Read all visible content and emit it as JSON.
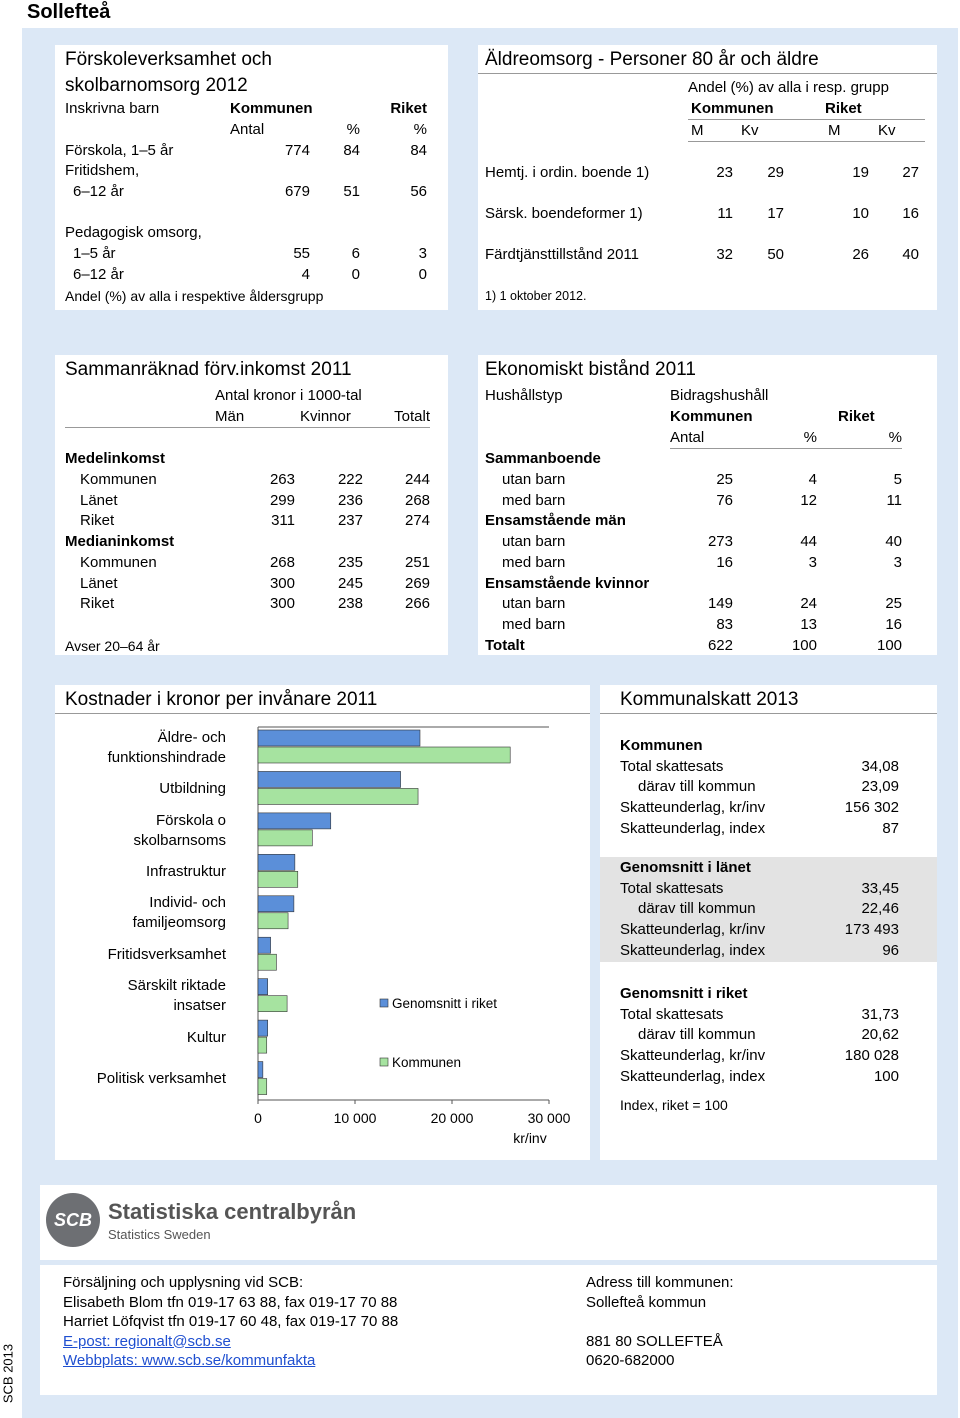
{
  "header": {
    "title": "Sollefteå"
  },
  "preschool": {
    "title": "Förskoleverksamhet och skolbarnomsorg 2012",
    "row_header": "Inskrivna barn",
    "col_groups": [
      "Kommunen",
      "Riket"
    ],
    "col_heads": [
      "Antal",
      "%",
      "%"
    ],
    "rows": [
      {
        "label": "Förskola, 1–5 år",
        "values": [
          774,
          84,
          84
        ]
      },
      {
        "label": "Fritidshem,",
        "rows": [
          {
            "label": "6–12 år",
            "values": [
              679,
              51,
              56
            ]
          }
        ]
      },
      {
        "label": "Pedagogisk omsorg,",
        "rows": [
          {
            "label": "1–5 år",
            "values": [
              55,
              6,
              3
            ]
          },
          {
            "label": "6–12 år",
            "values": [
              4,
              0,
              0
            ]
          }
        ]
      }
    ],
    "note": "Andel (%) av alla i respektive åldersgrupp"
  },
  "elderly": {
    "title": "Äldreomsorg - Personer 80 år och äldre",
    "subtitle": "Andel (%) av alla i resp. grupp",
    "col_groups": [
      "Kommunen",
      "Riket"
    ],
    "col_heads": [
      "M",
      "Kv",
      "M",
      "Kv"
    ],
    "rows": [
      {
        "label": "Hemtj. i ordin. boende 1)",
        "values": [
          23,
          29,
          19,
          27
        ]
      },
      {
        "label": "Särsk. boendeformer 1)",
        "values": [
          11,
          17,
          10,
          16
        ]
      },
      {
        "label": "Färdtjänsttillstånd 2011",
        "values": [
          32,
          50,
          26,
          40
        ]
      }
    ],
    "note": "1) 1 oktober 2012."
  },
  "income": {
    "title": "Sammanräknad förv.inkomst 2011",
    "unit": "Antal kronor i 1000-tal",
    "col_heads": [
      "Män",
      "Kvinnor",
      "Totalt"
    ],
    "rows": [
      {
        "label": "Medelinkomst",
        "rows": [
          {
            "label": "Kommunen",
            "values": [
              263,
              222,
              244
            ]
          },
          {
            "label": "Länet",
            "values": [
              299,
              236,
              268
            ]
          },
          {
            "label": "Riket",
            "values": [
              311,
              237,
              274
            ]
          }
        ]
      },
      {
        "label": "Medianinkomst",
        "rows": [
          {
            "label": "Kommunen",
            "values": [
              268,
              235,
              251
            ]
          },
          {
            "label": "Länet",
            "values": [
              300,
              245,
              269
            ]
          },
          {
            "label": "Riket",
            "values": [
              300,
              238,
              266
            ]
          }
        ]
      }
    ],
    "note": "Avser 20–64 år"
  },
  "aid": {
    "title": "Ekonomiskt bistånd 2011",
    "row_header": "Hushållstyp",
    "col_super": "Bidragshushåll",
    "col_groups": [
      "Kommunen",
      "Riket"
    ],
    "col_heads": [
      "Antal",
      "%",
      "%"
    ],
    "rows": [
      {
        "label": "Sammanboende",
        "rows": [
          {
            "label": "utan barn",
            "values": [
              25,
              4,
              5
            ]
          },
          {
            "label": "med barn",
            "values": [
              76,
              12,
              11
            ]
          }
        ]
      },
      {
        "label": "Ensamstående män",
        "rows": [
          {
            "label": "utan barn",
            "values": [
              273,
              44,
              40
            ]
          },
          {
            "label": "med barn",
            "values": [
              16,
              3,
              3
            ]
          }
        ]
      },
      {
        "label": "Ensamstående kvinnor",
        "rows": [
          {
            "label": "utan barn",
            "values": [
              149,
              24,
              25
            ]
          },
          {
            "label": "med barn",
            "values": [
              83,
              13,
              16
            ]
          }
        ]
      },
      {
        "label": "Totalt",
        "values": [
          622,
          100,
          100
        ]
      }
    ]
  },
  "chart_data": {
    "type": "bar",
    "orientation": "horizontal",
    "title": "Kostnader i kronor per invånare 2011",
    "categories": [
      "Äldre- och funktionshindrade",
      "Utbildning",
      "Förskola o skolbarnsoms",
      "Infrastruktur",
      "Individ- och familjeomsorg",
      "Fritidsverksamhet",
      "Särskilt riktade insatser",
      "Kultur",
      "Politisk verksamhet"
    ],
    "series": [
      {
        "name": "Genomsnitt i riket",
        "color": "#5b8fd9",
        "values": [
          16700,
          14700,
          7500,
          3800,
          3700,
          1300,
          1000,
          1000,
          500
        ]
      },
      {
        "name": "Kommunen",
        "color": "#a6e3a0",
        "values": [
          26000,
          16500,
          5600,
          4100,
          3100,
          1900,
          3000,
          900,
          900
        ]
      }
    ],
    "xlim": [
      0,
      30000
    ],
    "xticks": [
      0,
      {
        "value": 10000,
        "label": "10 000"
      },
      {
        "value": 20000,
        "label": "20 000"
      },
      {
        "value": 30000,
        "label": "30 000"
      }
    ],
    "x_label": "kr/inv",
    "grid": false
  },
  "tax": {
    "title": "Kommunalskatt 2013",
    "sections": [
      {
        "name": "Kommunen",
        "rows": [
          {
            "label": "Total skattesats",
            "value": "34,08",
            "rows": [
              {
                "label": "därav till kommun",
                "value": "23,09"
              }
            ]
          },
          {
            "label": "Skatteunderlag, kr/inv",
            "value": "156 302"
          },
          {
            "label": "Skatteunderlag, index",
            "value": "87"
          }
        ]
      },
      {
        "name": "Genomsnitt i länet",
        "rows": [
          {
            "label": "Total skattesats",
            "value": "33,45",
            "rows": [
              {
                "label": "därav till kommun",
                "value": "22,46"
              }
            ]
          },
          {
            "label": "Skatteunderlag, kr/inv",
            "value": "173 493"
          },
          {
            "label": "Skatteunderlag, index",
            "value": "96"
          }
        ]
      },
      {
        "name": "Genomsnitt i riket",
        "rows": [
          {
            "label": "Total skattesats",
            "value": "31,73",
            "rows": [
              {
                "label": "därav till kommun",
                "value": "20,62"
              }
            ]
          },
          {
            "label": "Skatteunderlag, kr/inv",
            "value": "180 028"
          },
          {
            "label": "Skatteunderlag, index",
            "value": "100"
          }
        ]
      }
    ],
    "note": "Index, riket = 100"
  },
  "footer": {
    "logo_mark": "SCB",
    "logo_name": "Statistiska centralbyrån",
    "logo_sub": "Statistics Sweden",
    "contact": [
      "Försäljning och upplysning vid SCB:",
      "Elisabeth Blom tfn 019-17 63 88, fax 019-17 70 88",
      "Harriet Löfqvist tfn 019-17 60 48, fax 019-17 70 88"
    ],
    "links": [
      "E-post: regionalt@scb.se",
      "Webbplats: www.scb.se/kommunfakta"
    ],
    "address": [
      "Adress till kommunen:",
      "Sollefteå kommun"
    ],
    "postal": [
      "881 80  SOLLEFTEÅ",
      "0620-682000"
    ]
  },
  "side_label": "SCB 2013"
}
